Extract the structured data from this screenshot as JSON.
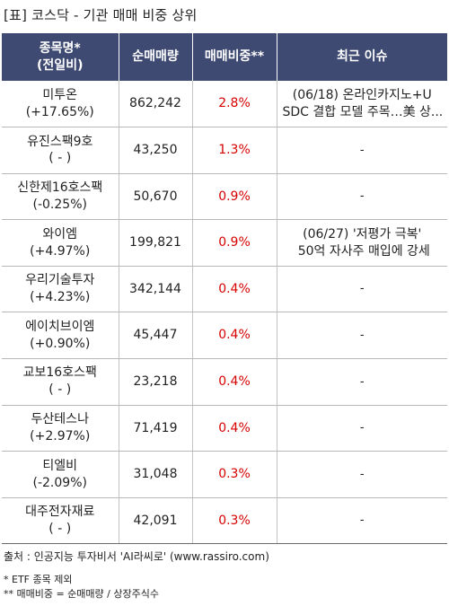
{
  "title": "[표] 코스닥 - 기관 매매 비중 상위",
  "table": {
    "headers": {
      "name_line1": "종목명*",
      "name_line2": "(전일비)",
      "volume": "순매매량",
      "ratio": "매매비중**",
      "issue": "최근 이슈"
    },
    "rows": [
      {
        "name": "미투온",
        "change": "(+17.65%)",
        "volume": "862,242",
        "ratio": "2.8%",
        "issue": [
          "(06/18) 온라인카지노+U",
          "SDC 결합 모델 주목…美 상..."
        ]
      },
      {
        "name": "유진스팩9호",
        "change": "( - )",
        "volume": "43,250",
        "ratio": "1.3%",
        "issue": [
          "-"
        ]
      },
      {
        "name": "신한제16호스팩",
        "change": "(-0.25%)",
        "volume": "50,670",
        "ratio": "0.9%",
        "issue": [
          "-"
        ]
      },
      {
        "name": "와이엠",
        "change": "(+4.97%)",
        "volume": "199,821",
        "ratio": "0.9%",
        "issue": [
          "(06/27) '저평가 극복'",
          "50억 자사주 매입에 강세"
        ]
      },
      {
        "name": "우리기술투자",
        "change": "(+4.23%)",
        "volume": "342,144",
        "ratio": "0.4%",
        "issue": [
          "-"
        ]
      },
      {
        "name": "에이치브이엠",
        "change": "(+0.90%)",
        "volume": "45,447",
        "ratio": "0.4%",
        "issue": [
          "-"
        ]
      },
      {
        "name": "교보16호스팩",
        "change": "( - )",
        "volume": "23,218",
        "ratio": "0.4%",
        "issue": [
          "-"
        ]
      },
      {
        "name": "두산테스나",
        "change": "(+2.97%)",
        "volume": "71,419",
        "ratio": "0.4%",
        "issue": [
          "-"
        ]
      },
      {
        "name": "티엘비",
        "change": "(-2.09%)",
        "volume": "31,048",
        "ratio": "0.3%",
        "issue": [
          "-"
        ]
      },
      {
        "name": "대주전자재료",
        "change": "( - )",
        "volume": "42,091",
        "ratio": "0.3%",
        "issue": [
          "-"
        ]
      }
    ]
  },
  "footer": {
    "source": "출처 : 인공지능 투자비서 'AI라씨로' (www.rassiro.com)",
    "note1": "* ETF 종목 제외",
    "note2": "** 매매비중 = 순매매량 / 상장주식수"
  },
  "colors": {
    "header_bg": "#3f4a72",
    "ratio_text": "#d60000"
  }
}
